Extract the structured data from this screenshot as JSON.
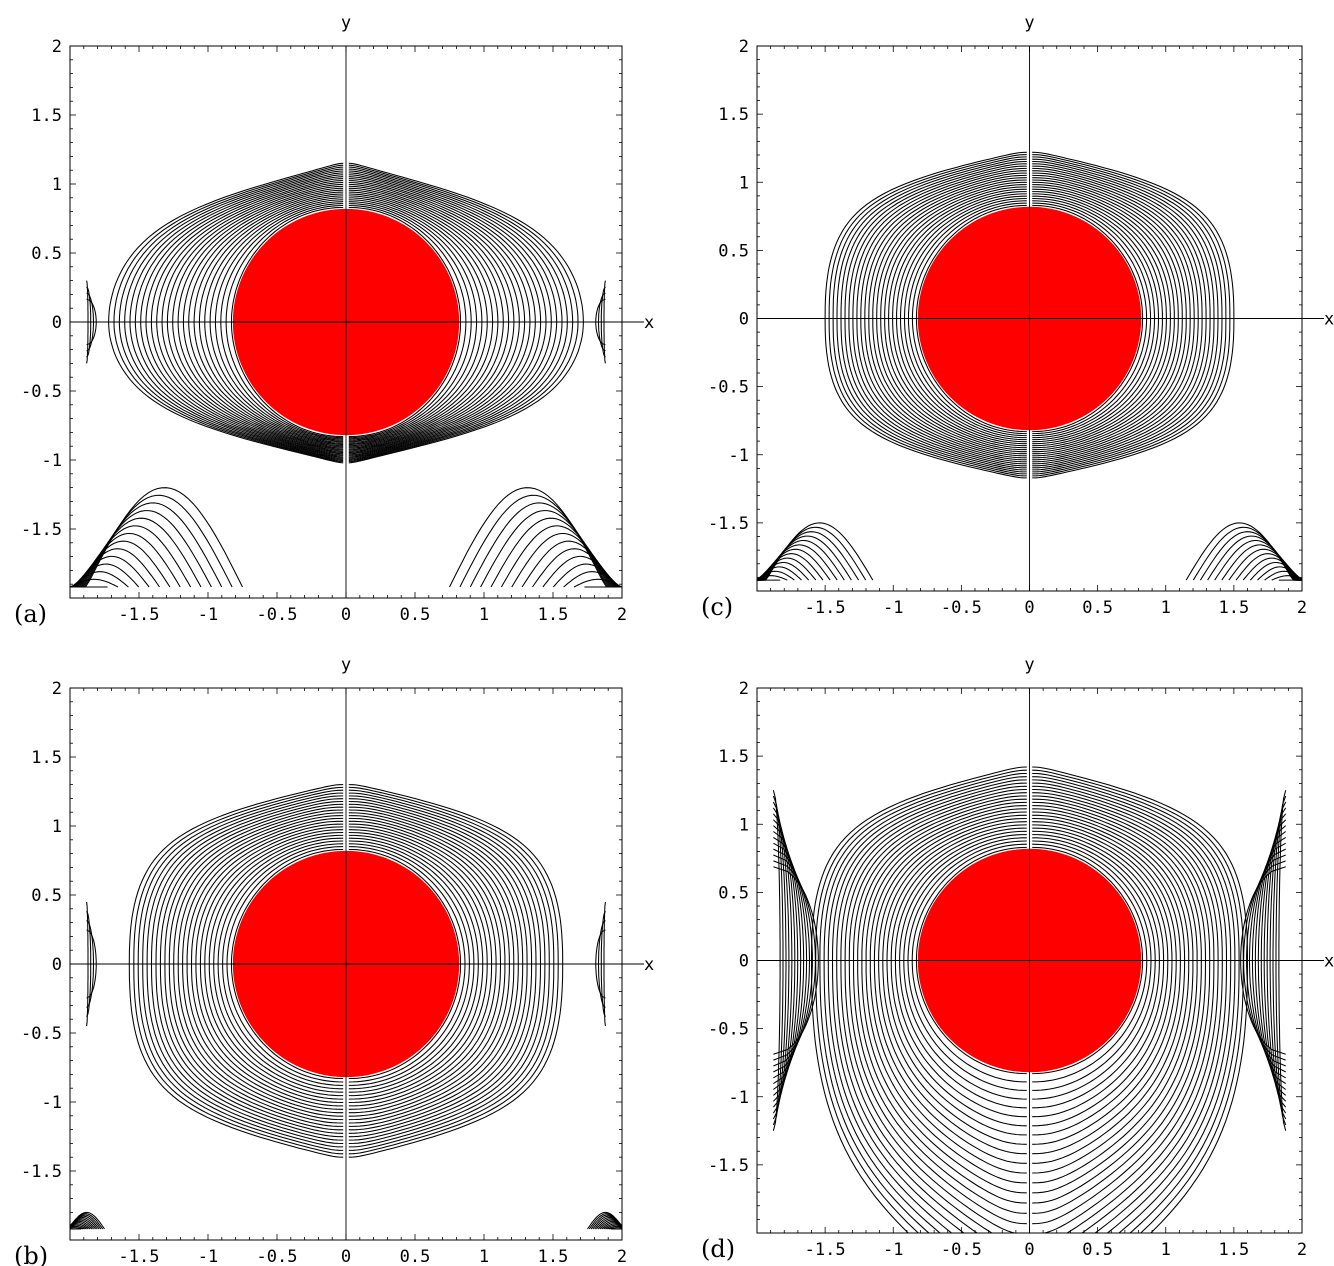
{
  "figure": {
    "panels": [
      {
        "id": "a",
        "label": "(a)"
      },
      {
        "id": "c",
        "label": "(c)"
      },
      {
        "id": "b",
        "label": "(b)"
      },
      {
        "id": "d",
        "label": "(d)"
      }
    ]
  },
  "chart_data": [
    {
      "panel": "(a)",
      "type": "contour",
      "xlabel": "x",
      "ylabel": "y",
      "xlim": [
        -2,
        2
      ],
      "ylim": [
        -2,
        2
      ],
      "xticks": [
        "-1.5",
        "-1",
        "-0.5",
        "0",
        "0.5",
        "1",
        "1.5",
        "2"
      ],
      "yticks": [
        "2",
        "1.5",
        "1",
        "0.5",
        "0",
        "-0.5",
        "-1",
        "-1.5"
      ],
      "disk": {
        "center": [
          0,
          0
        ],
        "radius": 0.82,
        "color": "#ff0000"
      },
      "lobes": {
        "max_x": 1.72,
        "max_y": 1.15,
        "min_y": -1.02,
        "count": 24
      },
      "corner_contours": {
        "edge_x": 1.9,
        "peak_y": -1.2,
        "inner_x": 0.75
      },
      "side_contours": {
        "x": 1.9,
        "half_height": 0.3
      }
    },
    {
      "panel": "(c)",
      "type": "contour",
      "xlabel": "x",
      "ylabel": "y",
      "xlim": [
        -2,
        2
      ],
      "ylim": [
        -2,
        2
      ],
      "xticks": [
        "-1.5",
        "-1",
        "-0.5",
        "0",
        "0.5",
        "1",
        "1.5",
        "2"
      ],
      "yticks": [
        "2",
        "1.5",
        "1",
        "0.5",
        "0",
        "-0.5",
        "-1",
        "-1.5"
      ],
      "disk": {
        "center": [
          0,
          0
        ],
        "radius": 0.82,
        "color": "#ff0000"
      },
      "lobes": {
        "max_x": 1.5,
        "max_y": 1.22,
        "min_y": -1.17,
        "count": 24
      },
      "corner_contours": {
        "edge_x": 1.95,
        "peak_y": -1.5,
        "inner_x": 1.15
      }
    },
    {
      "panel": "(b)",
      "type": "contour",
      "xlabel": "x",
      "ylabel": "y",
      "xlim": [
        -2,
        2
      ],
      "ylim": [
        -2,
        2
      ],
      "xticks": [
        "-1.5",
        "-1",
        "-0.5",
        "0",
        "0.5",
        "1",
        "1.5",
        "2"
      ],
      "yticks": [
        "2",
        "1.5",
        "1",
        "0.5",
        "0",
        "-0.5",
        "-1",
        "-1.5"
      ],
      "disk": {
        "center": [
          0,
          0
        ],
        "radius": 0.82,
        "color": "#ff0000"
      },
      "lobes": {
        "max_x": 1.57,
        "max_y": 1.3,
        "min_y": -1.4,
        "count": 24
      },
      "corner_contours": {
        "edge_x": 1.95,
        "peak_y": -1.8,
        "inner_x": 1.75
      },
      "side_contours": {
        "x": 1.9,
        "half_height": 0.45
      }
    },
    {
      "panel": "(d)",
      "type": "contour",
      "xlabel": "x",
      "ylabel": "y",
      "xlim": [
        -2,
        2
      ],
      "ylim": [
        -2,
        2
      ],
      "xticks": [
        "-1.5",
        "-1",
        "-0.5",
        "0",
        "0.5",
        "1",
        "1.5",
        "2"
      ],
      "yticks": [
        "2",
        "1.5",
        "1",
        "0.5",
        "0",
        "-0.5",
        "-1",
        "-1.5"
      ],
      "disk": {
        "center": [
          0,
          0
        ],
        "radius": 0.82,
        "color": "#ff0000"
      },
      "lobes": {
        "max_x": 1.6,
        "max_y": 1.42,
        "min_y": -2,
        "count": 26
      },
      "side_contours": {
        "x": 1.9,
        "half_height": 1.25
      }
    }
  ]
}
